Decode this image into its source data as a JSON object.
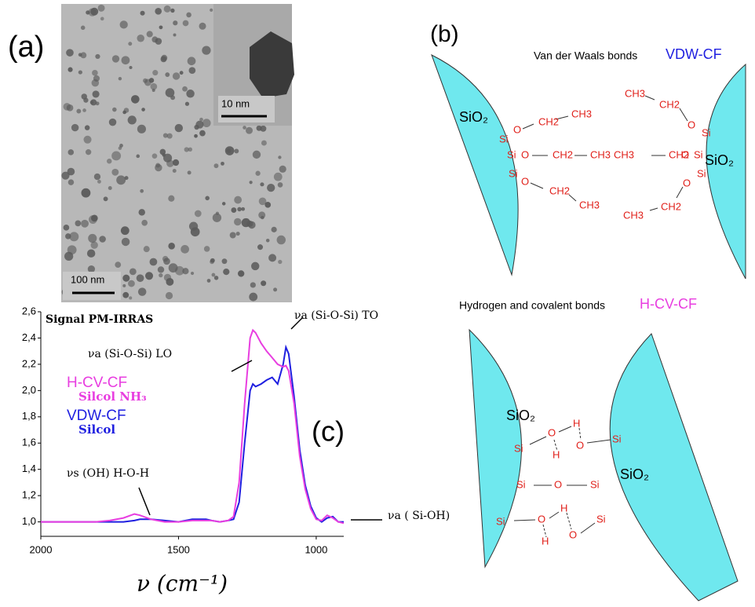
{
  "panel_a": {
    "label": "(a)",
    "inset_scale": "10 nm",
    "scale": "100 nm"
  },
  "panel_b": {
    "label": "(b)",
    "top_title": "Van der Waals bonds",
    "top_tag": "VDW-CF",
    "top_sio2": [
      "SiO₂",
      "SiO₂"
    ],
    "top_atoms": [
      "Si",
      "O",
      "CH2",
      "CH3",
      "Si",
      "O",
      "CH2",
      "CH3",
      "Si",
      "O",
      "CH2",
      "CH3",
      "CH3",
      "CH2",
      "O",
      "Si",
      "CH3",
      "CH2",
      "O",
      "Si",
      "Si",
      "O",
      "CH2",
      "CH3"
    ],
    "bottom_title": "Hydrogen and covalent bonds",
    "bottom_tag": "H-CV-CF",
    "bottom_sio2": [
      "SiO₂",
      "SiO₂"
    ],
    "bottom_atoms": [
      "Si",
      "O",
      "H",
      "H",
      "O",
      "Si",
      "Si",
      "O",
      "Si",
      "Si",
      "O",
      "H",
      "H",
      "O",
      "Si"
    ]
  },
  "chart_data": {
    "type": "line",
    "label": "(c)",
    "title": "Signal PM-IRRAS",
    "x_label": "ν (cm⁻¹)",
    "x": [
      2000,
      1900,
      1800,
      1750,
      1700,
      1660,
      1640,
      1600,
      1550,
      1500,
      1450,
      1400,
      1380,
      1350,
      1320,
      1300,
      1280,
      1260,
      1240,
      1230,
      1220,
      1200,
      1180,
      1160,
      1140,
      1120,
      1110,
      1100,
      1080,
      1060,
      1040,
      1020,
      1000,
      980,
      960,
      940,
      920,
      900
    ],
    "series": [
      {
        "name": "H-CV-CF",
        "sublabel": "Silcol NH₃",
        "color": "#e83ee0",
        "values": [
          1.0,
          1.0,
          1.0,
          1.01,
          1.03,
          1.06,
          1.05,
          1.02,
          1.0,
          1.0,
          1.01,
          1.01,
          1.01,
          1.0,
          1.01,
          1.04,
          1.3,
          1.9,
          2.4,
          2.46,
          2.44,
          2.36,
          2.3,
          2.25,
          2.2,
          2.18,
          2.19,
          2.15,
          1.9,
          1.5,
          1.25,
          1.1,
          1.02,
          1.01,
          1.05,
          1.03,
          1.0,
          0.99
        ]
      },
      {
        "name": "VDW-CF",
        "sublabel": "Silcol",
        "color": "#1f1fe0",
        "values": [
          1.0,
          1.0,
          1.0,
          1.0,
          1.0,
          1.01,
          1.02,
          1.02,
          1.01,
          1.0,
          1.02,
          1.02,
          1.01,
          1.0,
          1.01,
          1.02,
          1.15,
          1.6,
          2.0,
          2.05,
          2.03,
          2.05,
          2.08,
          2.1,
          2.05,
          2.2,
          2.33,
          2.28,
          1.95,
          1.55,
          1.28,
          1.12,
          1.03,
          1.0,
          1.03,
          1.04,
          1.0,
          1.0
        ]
      }
    ],
    "xlim": [
      2000,
      900
    ],
    "xticks": [
      2000,
      1500,
      1000
    ],
    "ylim": [
      0.89,
      2.6
    ],
    "yticks": [
      {
        "value": 1.0,
        "label": "1,0"
      },
      {
        "value": 1.2,
        "label": "1,2"
      },
      {
        "value": 1.4,
        "label": "1,4"
      },
      {
        "value": 1.6,
        "label": "1,6"
      },
      {
        "value": 1.8,
        "label": "1,8"
      },
      {
        "value": 2.0,
        "label": "2,0"
      },
      {
        "value": 2.2,
        "label": "2,2"
      },
      {
        "value": 2.4,
        "label": "2,4"
      },
      {
        "value": 2.6,
        "label": "2,6"
      }
    ],
    "annotations": [
      "νa (Si-O-Si) LO",
      "νa (Si-O-Si) TO",
      "νs (OH)  H-O-H",
      "νa ( Si-OH)"
    ]
  }
}
